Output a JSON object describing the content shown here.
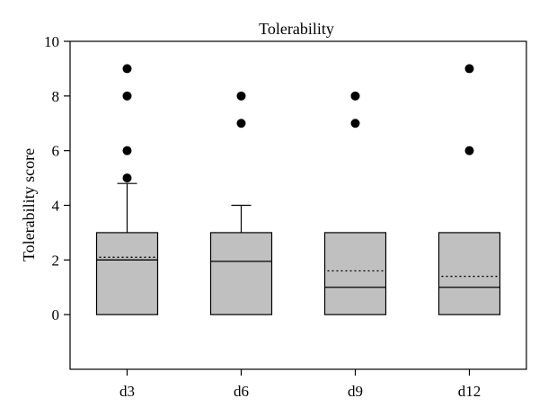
{
  "chart_data": {
    "type": "box",
    "title": "Tolerability",
    "xlabel": "",
    "ylabel": "Tolerability score",
    "categories": [
      "d3",
      "d6",
      "d9",
      "d12"
    ],
    "ylim": [
      -2,
      10
    ],
    "yticks": [
      0,
      2,
      4,
      6,
      8,
      10
    ],
    "grid": false,
    "box_color": "#c0c0c0",
    "boxes": [
      {
        "category": "d3",
        "q1": 0,
        "median": 2,
        "q3": 3,
        "mean": 2.1,
        "whisker_low": 0,
        "whisker_high": 4.8,
        "outliers": [
          5,
          6,
          8,
          9
        ]
      },
      {
        "category": "d6",
        "q1": 0,
        "median": 1.95,
        "q3": 3,
        "mean": null,
        "whisker_low": 0,
        "whisker_high": 4,
        "outliers": [
          7,
          8
        ]
      },
      {
        "category": "d9",
        "q1": 0,
        "median": 1,
        "q3": 3,
        "mean": 1.6,
        "whisker_low": 0,
        "whisker_high": 3,
        "outliers": [
          7,
          8
        ]
      },
      {
        "category": "d12",
        "q1": 0,
        "median": 1,
        "q3": 3,
        "mean": 1.4,
        "whisker_low": 0,
        "whisker_high": 3,
        "outliers": [
          6,
          9
        ]
      }
    ]
  }
}
